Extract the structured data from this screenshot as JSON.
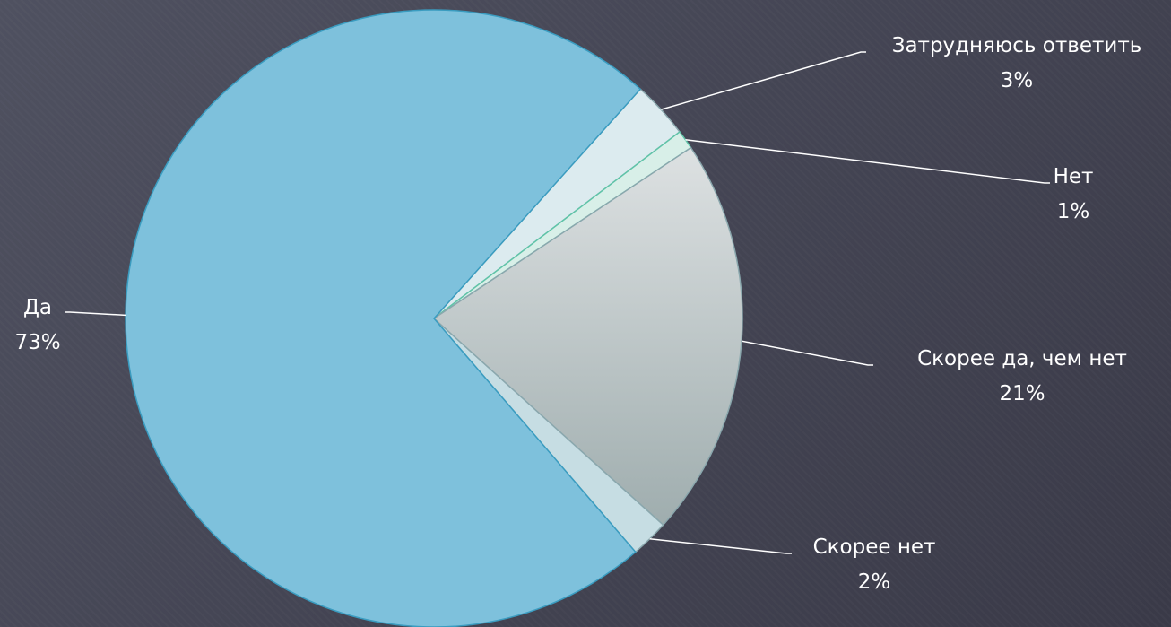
{
  "chart_data": {
    "type": "pie",
    "title": "",
    "slices": [
      {
        "label": "Затрудняюсь ответить",
        "value": 3,
        "value_label": "3%",
        "color": "#dcebef"
      },
      {
        "label": "Нет",
        "value": 1,
        "value_label": "1%",
        "color": "#d8efe8"
      },
      {
        "label": "Скорее да, чем нет",
        "value": 21,
        "value_label": "21%",
        "color": "#c4cccd"
      },
      {
        "label": "Скорее нет",
        "value": 2,
        "value_label": "2%",
        "color": "#c6dde3"
      },
      {
        "label": "Да",
        "value": 73,
        "value_label": "73%",
        "color": "#7ec1dc"
      }
    ],
    "legend": "none",
    "data_labels": "outside with leader lines"
  }
}
